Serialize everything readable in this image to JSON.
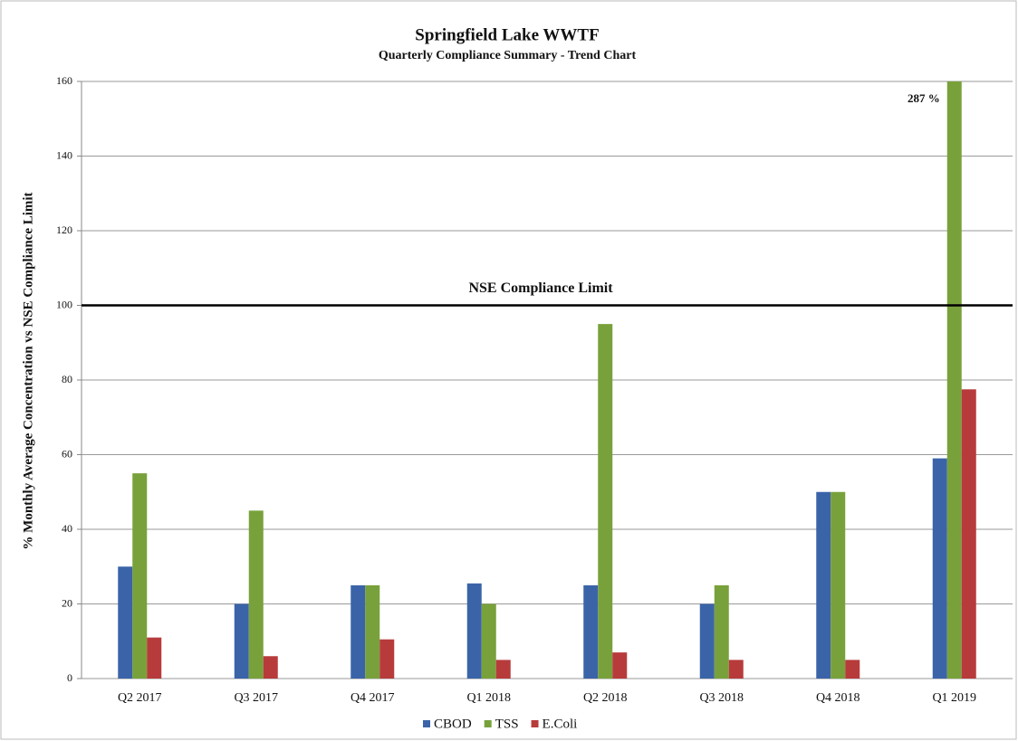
{
  "chart_data": {
    "type": "bar",
    "title": "Springfield Lake WWTF",
    "subtitle": "Quarterly Compliance Summary  -  Trend Chart",
    "y_label": "% Monthly Average Concentration  vs NSE Compliance  Limit",
    "categories": [
      "Q2 2017",
      "Q3 2017",
      "Q4 2017",
      "Q1 2018",
      "Q2 2018",
      "Q3 2018",
      "Q4 2018",
      "Q1 2019"
    ],
    "series": [
      {
        "name": "CBOD",
        "color": "#3b64a8",
        "values": [
          30,
          20,
          25,
          25.5,
          25,
          20,
          50,
          59
        ]
      },
      {
        "name": "TSS",
        "color": "#78a13b",
        "values": [
          55,
          45,
          25,
          20,
          95,
          25,
          50,
          287
        ],
        "value_labels": [
          null,
          null,
          null,
          null,
          null,
          null,
          null,
          "287 %"
        ]
      },
      {
        "name": "E.Coli",
        "color": "#b83b3b",
        "values": [
          11,
          6,
          10.5,
          5,
          7,
          5,
          5,
          77.5
        ]
      }
    ],
    "reference_line": {
      "value": 100,
      "label": "NSE Compliance  Limit"
    },
    "ylim": [
      0,
      160
    ],
    "yticks": [
      0,
      20,
      40,
      60,
      80,
      100,
      120,
      140,
      160
    ],
    "grid": true,
    "legend": "bottom"
  }
}
